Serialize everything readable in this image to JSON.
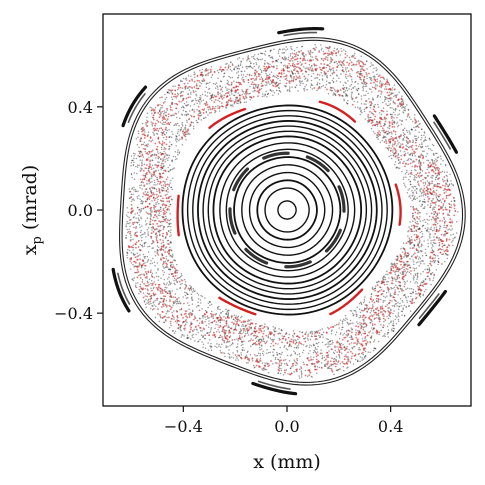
{
  "chart_data": {
    "type": "scatter",
    "title": "",
    "xlabel": "x (mm)",
    "ylabel_main": "x",
    "ylabel_sub": "p",
    "ylabel_rest": " (mrad)",
    "xlim": [
      -0.71,
      0.71
    ],
    "ylim": [
      -0.76,
      0.76
    ],
    "grid": false,
    "xticks": [
      {
        "value": -0.4,
        "label": "−0.4"
      },
      {
        "value": 0.0,
        "label": "0.0"
      },
      {
        "value": 0.4,
        "label": "0.4"
      }
    ],
    "yticks": [
      {
        "value": 0.4,
        "label": "0.4"
      },
      {
        "value": 0.0,
        "label": "0.0"
      },
      {
        "value": -0.4,
        "label": "−0.4"
      }
    ],
    "colors": {
      "regular_orbits": "#111111",
      "chaotic_points": "#222222",
      "highlight_orbit": "#d42020"
    },
    "series": [
      {
        "kind": "regular_orbits",
        "radii": [
          0.035,
          0.085,
          0.115,
          0.145,
          0.175,
          0.205,
          0.235,
          0.26,
          0.285,
          0.305,
          0.325,
          0.345,
          0.365,
          0.385,
          0.405
        ]
      },
      {
        "kind": "island_chain",
        "center_radius": 0.22,
        "count": 8,
        "half_width": 0.012
      },
      {
        "kind": "chaotic_band",
        "inner": 0.46,
        "outer": 0.64
      },
      {
        "kind": "highlight_band",
        "inner": 0.47,
        "outer": 0.63
      },
      {
        "kind": "islands_inner",
        "radius": 0.43,
        "count": 6
      },
      {
        "kind": "outer_boundary",
        "radii": [
          0.655,
          0.665
        ]
      },
      {
        "kind": "islands_outer",
        "radius": 0.7,
        "count": 6
      }
    ]
  }
}
